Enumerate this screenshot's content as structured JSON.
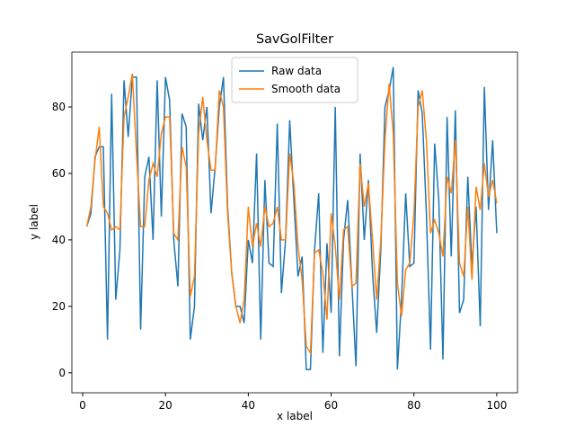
{
  "chart_data": {
    "type": "line",
    "title": "SavGolFilter",
    "xlabel": "x label",
    "ylabel": "y label",
    "x": [
      1,
      2,
      3,
      4,
      5,
      6,
      7,
      8,
      9,
      10,
      11,
      12,
      13,
      14,
      15,
      16,
      17,
      18,
      19,
      20,
      21,
      22,
      23,
      24,
      25,
      26,
      27,
      28,
      29,
      30,
      31,
      32,
      33,
      34,
      35,
      36,
      37,
      38,
      39,
      40,
      41,
      42,
      43,
      44,
      45,
      46,
      47,
      48,
      49,
      50,
      51,
      52,
      53,
      54,
      55,
      56,
      57,
      58,
      59,
      60,
      61,
      62,
      63,
      64,
      65,
      66,
      67,
      68,
      69,
      70,
      71,
      72,
      73,
      74,
      75,
      76,
      77,
      78,
      79,
      80,
      81,
      82,
      83,
      84,
      85,
      86,
      87,
      88,
      89,
      90,
      91,
      92,
      93,
      94,
      95,
      96,
      97,
      98,
      99,
      100
    ],
    "series": [
      {
        "name": "Raw data",
        "color": "#1f77b4",
        "values": [
          44,
          48,
          65,
          68,
          68,
          10,
          84,
          22,
          37,
          88,
          71,
          89,
          89,
          13,
          59,
          65,
          40,
          88,
          47,
          89,
          82,
          40,
          26,
          78,
          74,
          10,
          20,
          81,
          70,
          80,
          48,
          62,
          80,
          89,
          50,
          30,
          20,
          20,
          15,
          40,
          33,
          66,
          10,
          58,
          33,
          32,
          75,
          24,
          40,
          76,
          52,
          29,
          35,
          1,
          1,
          37,
          54,
          6,
          39,
          18,
          80,
          5,
          40,
          52,
          27,
          2,
          66,
          40,
          58,
          30,
          12,
          37,
          80,
          85,
          92,
          1,
          22,
          54,
          32,
          33,
          85,
          78,
          48,
          7,
          69,
          52,
          4,
          77,
          35,
          79,
          18,
          22,
          59,
          32,
          50,
          14,
          86,
          49,
          70,
          42
        ]
      },
      {
        "name": "Smooth data",
        "color": "#ff7f0e",
        "values": [
          44,
          50,
          64,
          74,
          50,
          48,
          43,
          44,
          43,
          77,
          83,
          90,
          66,
          44,
          44,
          58,
          63,
          59,
          72,
          77,
          77,
          42,
          40,
          68,
          62,
          23,
          29,
          72,
          83,
          70,
          61,
          61,
          85,
          80,
          48,
          30,
          20,
          15,
          22,
          50,
          38,
          45,
          38,
          50,
          44,
          45,
          50,
          40,
          40,
          66,
          57,
          38,
          28,
          8,
          6,
          36,
          37,
          30,
          16,
          48,
          38,
          22,
          43,
          44,
          26,
          27,
          63,
          50,
          57,
          40,
          22,
          40,
          70,
          87,
          72,
          27,
          17,
          31,
          33,
          48,
          80,
          85,
          70,
          42,
          46,
          42,
          35,
          59,
          54,
          70,
          33,
          29,
          50,
          28,
          56,
          49,
          63,
          53,
          58,
          51
        ]
      }
    ],
    "xlim": [
      -2.6,
      105
    ],
    "xticks": [
      0,
      20,
      40,
      60,
      80,
      100
    ],
    "ylim": [
      -6,
      96.5
    ],
    "yticks": [
      0,
      20,
      40,
      60,
      80
    ],
    "legend": "upper center"
  }
}
